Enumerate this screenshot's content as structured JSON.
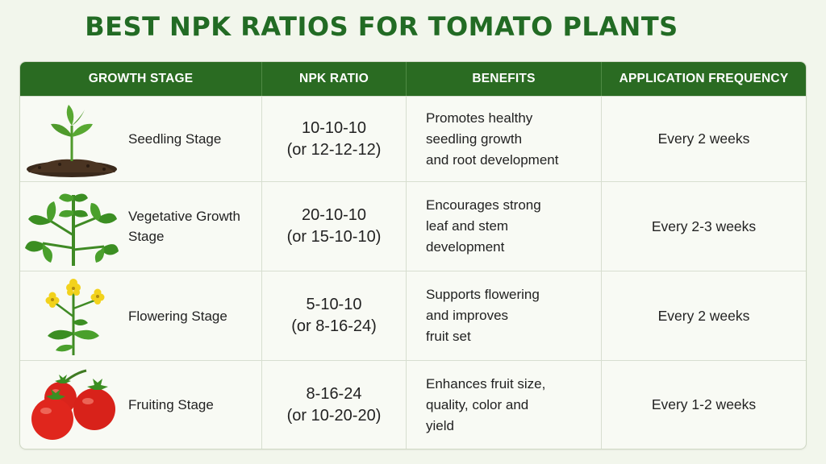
{
  "title": "BEST NPK RATIOS FOR TOMATO PLANTS",
  "headers": {
    "stage": "GROWTH STAGE",
    "ratio": "NPK RATIO",
    "benefits": "BENEFITS",
    "frequency": "APPLICATION FREQUENCY"
  },
  "colors": {
    "header_green": "#2a6b22",
    "title_green": "#226b24",
    "background": "#f2f6ec"
  },
  "rows": [
    {
      "icon": "seedling-icon",
      "stage": "Seedling Stage",
      "ratio_primary": "10-10-10",
      "ratio_alt": "(or 12-12-12)",
      "benefit": "Promotes healthy\nseedling growth\nand root development",
      "frequency": "Every 2 weeks"
    },
    {
      "icon": "tomato-plant-icon",
      "stage": "Vegetative Growth\nStage",
      "ratio_primary": "20-10-10",
      "ratio_alt": "(or 15-10-10)",
      "benefit": "Encourages strong\nleaf and stem\ndevelopment",
      "frequency": "Every 2-3 weeks"
    },
    {
      "icon": "flowering-plant-icon",
      "stage": "Flowering Stage",
      "ratio_primary": "5-10-10",
      "ratio_alt": "(or 8-16-24)",
      "benefit": "Supports flowering\nand improves\nfruit set",
      "frequency": "Every 2 weeks"
    },
    {
      "icon": "tomatoes-icon",
      "stage": "Fruiting Stage",
      "ratio_primary": "8-16-24",
      "ratio_alt": "(or 10-20-20)",
      "benefit": "Enhances fruit size,\nquality, color and\nyield",
      "frequency": "Every 1-2 weeks"
    }
  ]
}
